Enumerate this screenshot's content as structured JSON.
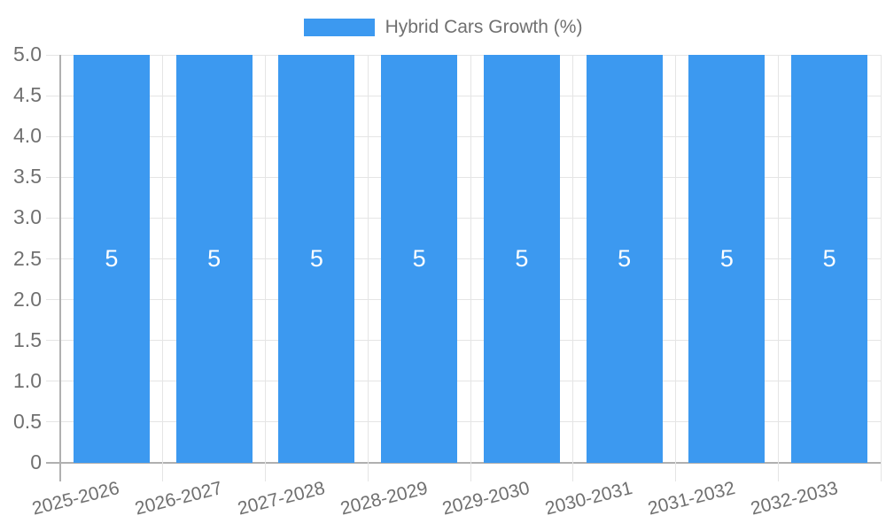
{
  "legend": {
    "label": "Hybrid Cars Growth (%)",
    "position": "top"
  },
  "chart_data": {
    "type": "bar",
    "title": "Hybrid Cars Growth (%)",
    "categories": [
      "2025-2026",
      "2026-2027",
      "2027-2028",
      "2028-2029",
      "2029-2030",
      "2030-2031",
      "2031-2032",
      "2032-2033"
    ],
    "series": [
      {
        "name": "Hybrid Cars Growth (%)",
        "values": [
          5,
          5,
          5,
          5,
          5,
          5,
          5,
          5
        ],
        "color": "#3C99F0"
      }
    ],
    "bar_value_labels": [
      "5",
      "5",
      "5",
      "5",
      "5",
      "5",
      "5",
      "5"
    ],
    "xlabel": "",
    "ylabel": "",
    "ylim": [
      0,
      5
    ],
    "ytick_step": 0.5,
    "ytick_labels": [
      "5.0",
      "4.5",
      "4.0",
      "3.5",
      "3.0",
      "2.5",
      "2.0",
      "1.5",
      "1.0",
      "0.5",
      "0"
    ],
    "grid": true,
    "legend_position": "top"
  },
  "colors": {
    "bar": "#3C99F0",
    "grid_line": "#e5e5e5",
    "axis_line": "#b0b0b0",
    "tick_text": "#707070",
    "legend_text": "#707070",
    "bar_label_text": "#ffffff",
    "background": "#ffffff"
  }
}
